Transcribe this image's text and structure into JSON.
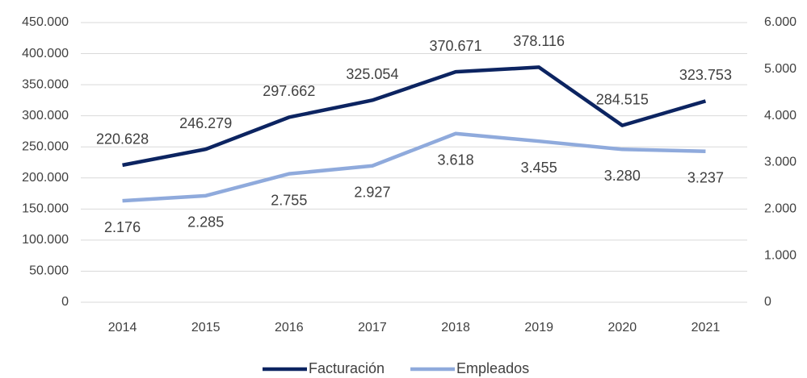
{
  "chart_data": {
    "type": "line",
    "categories": [
      "2014",
      "2015",
      "2016",
      "2017",
      "2018",
      "2019",
      "2020",
      "2021"
    ],
    "series": [
      {
        "name": "Facturación",
        "color": "#0c2461",
        "axis": "y",
        "values": [
          220628,
          246279,
          297662,
          325054,
          370671,
          378116,
          284515,
          323753
        ],
        "value_labels": [
          "220.628",
          "246.279",
          "297.662",
          "325.054",
          "370.671",
          "378.116",
          "284.515",
          "323.753"
        ]
      },
      {
        "name": "Empleados",
        "color": "#8faadc",
        "axis": "y2",
        "values": [
          2176,
          2285,
          2755,
          2927,
          3618,
          3455,
          3280,
          3237
        ],
        "value_labels": [
          "2.176",
          "2.285",
          "2.755",
          "2.927",
          "3.618",
          "3.455",
          "3.280",
          "3.237"
        ]
      }
    ],
    "ylim": [
      0,
      450000
    ],
    "yticks": [
      0,
      {
        "value": 50000,
        "label": "50.000"
      },
      {
        "value": 100000,
        "label": "100.000"
      },
      {
        "value": 150000,
        "label": "150.000"
      },
      {
        "value": 200000,
        "label": "200.000"
      },
      {
        "value": 250000,
        "label": "250.000"
      },
      {
        "value": 300000,
        "label": "300.000"
      },
      {
        "value": 350000,
        "label": "350.000"
      },
      {
        "value": 400000,
        "label": "400.000"
      },
      {
        "value": 450000,
        "label": "450.000"
      }
    ],
    "y2lim": [
      0,
      6000
    ],
    "y2ticks": [
      0,
      {
        "value": 1000,
        "label": "1.000"
      },
      {
        "value": 2000,
        "label": "2.000"
      },
      {
        "value": 3000,
        "label": "3.000"
      },
      {
        "value": 4000,
        "label": "4.000"
      },
      {
        "value": 5000,
        "label": "5.000"
      },
      {
        "value": 6000,
        "label": "6.000"
      }
    ],
    "grid": true,
    "legend": "bottom"
  }
}
